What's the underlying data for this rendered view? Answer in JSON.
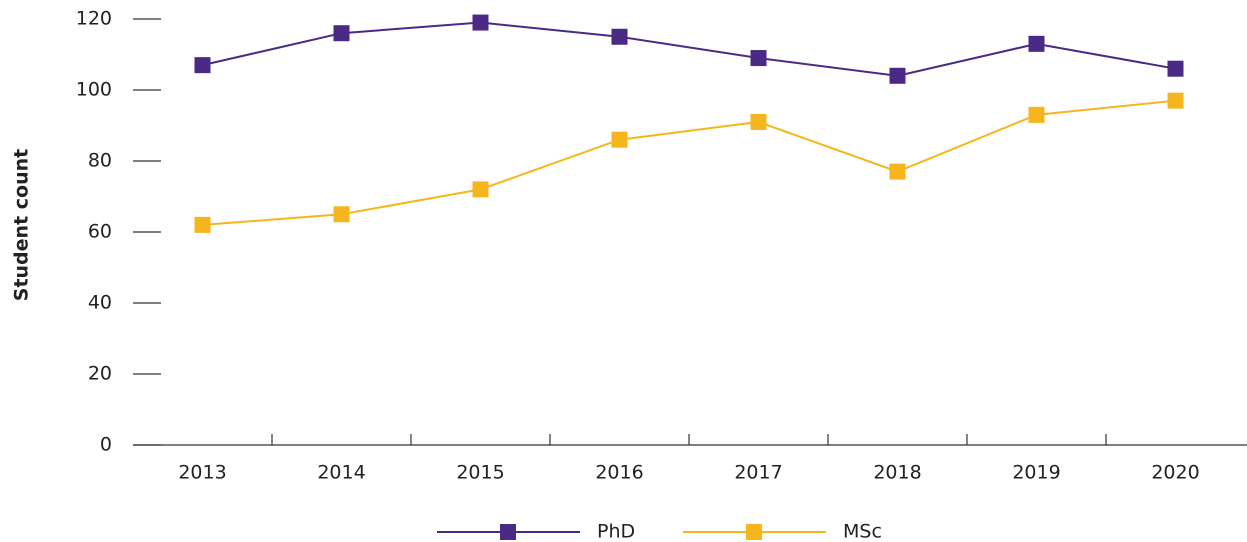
{
  "chart_data": {
    "type": "line",
    "y_label": "Student count",
    "categories": [
      "2013",
      "2014",
      "2015",
      "2016",
      "2017",
      "2018",
      "2019",
      "2020"
    ],
    "series": [
      {
        "name": "PhD",
        "color": "#4b2a85",
        "values": [
          107,
          116,
          119,
          115,
          109,
          104,
          113,
          106
        ]
      },
      {
        "name": "MSc",
        "color": "#f7b51d",
        "values": [
          62,
          65,
          72,
          86,
          91,
          77,
          93,
          97
        ]
      }
    ],
    "ylim": [
      0,
      120
    ],
    "yticks": [
      0,
      20,
      40,
      60,
      80,
      100,
      120
    ],
    "legend": "bottom"
  }
}
